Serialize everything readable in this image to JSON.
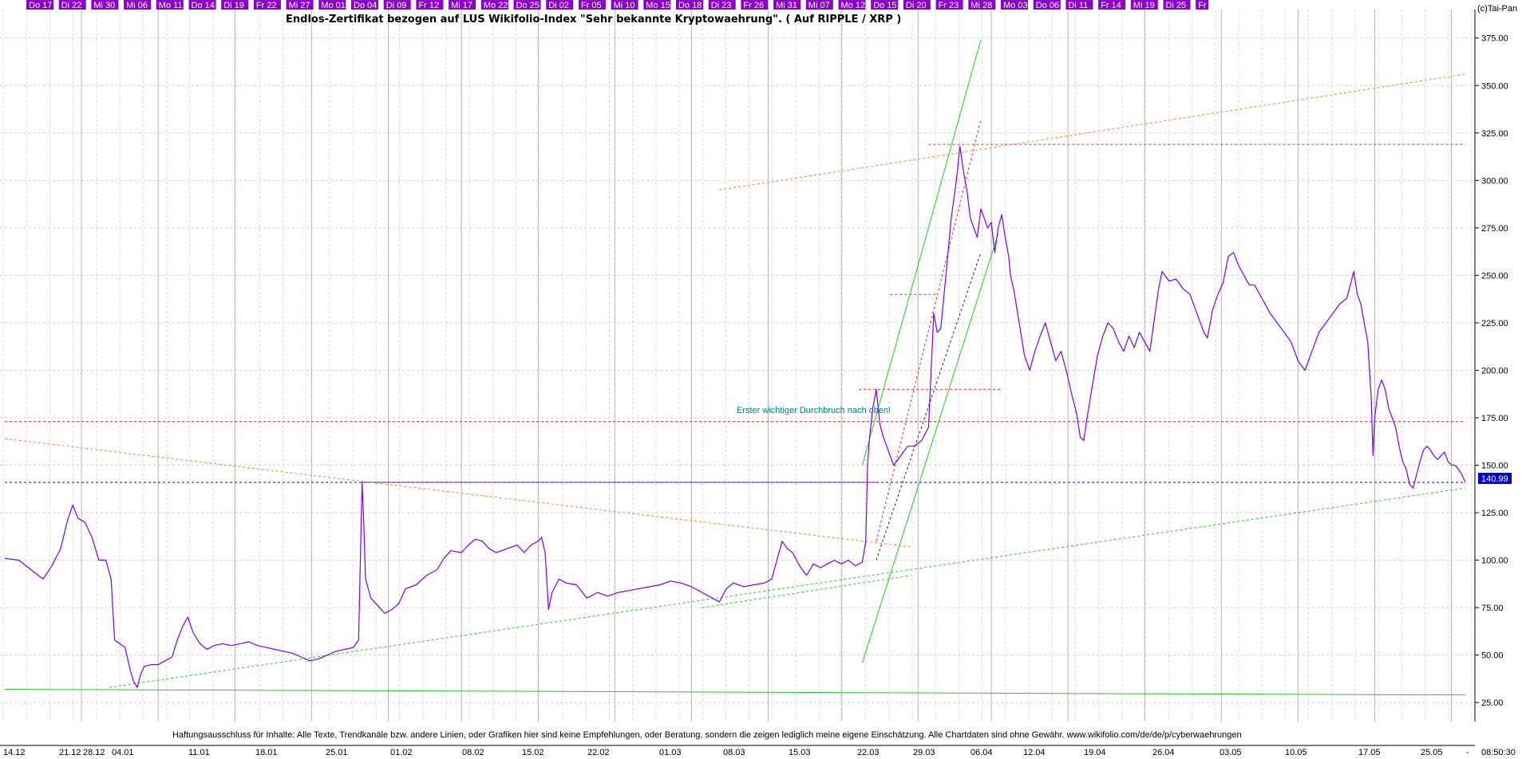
{
  "copyright": "(c)Tai-Pan",
  "footer_time": "08:50:30",
  "footer_dash": "-",
  "disclaimer": "Haftungsausschluss für Inhalte: Alle Texte, Trendkanäle bzw. andere Linien, oder Grafiken hier sind keine Empfehlungen, oder Beratung, sondern die zeigen lediglich meine eigene Einschätzung. Alle Chartdaten sind ohne Gewähr.  www.wikifolio.com/de/de/p/cyberwaehrungen",
  "top_day_tags": [
    "Do 17",
    "Di 22",
    "Mi 30",
    "Mi 06",
    "Mo 11",
    "Do 14",
    "Di 19",
    "Fr 22",
    "Mi 27",
    "Mo 01",
    "Do 04",
    "Di 09",
    "Fr 12",
    "Mi 17",
    "Mo 22",
    "Do 25",
    "Di 02",
    "Fr 05",
    "Mi 10",
    "Mo 15",
    "Do 18",
    "Di 23",
    "Fr 26",
    "Mi 31",
    "Mi 07",
    "Mo 12",
    "Do 15",
    "Di 20",
    "Fr 23",
    "Mi 28",
    "Mo 03",
    "Do 06",
    "Di 11",
    "Fr 14",
    "Mi 19",
    "Di 25",
    "Fr"
  ],
  "colors": {
    "price_line": "#7a00ee",
    "day_tag": "#8a00c8",
    "support_green": "#22cc22",
    "resistance_red": "#ee2222",
    "trend_orange": "#ff7f27",
    "current_price_blue": "#0000cc",
    "annotation_teal": "#008080"
  },
  "chart_data": {
    "type": "line",
    "title": "Endlos-Zertifikat bezogen auf LUS Wikifolio-Index \"Sehr bekannte Kryptowaehrung\". ( Auf RIPPLE / XRP )",
    "xlabel": "",
    "ylabel": "",
    "ylim": [
      15,
      390
    ],
    "y_ticks": [
      "25.00",
      "50.00",
      "75.00",
      "100.00",
      "125.00",
      "150.00",
      "175.00",
      "200.00",
      "225.00",
      "250.00",
      "275.00",
      "300.00",
      "325.00",
      "350.00",
      "375.00"
    ],
    "x_tick_labels": [
      "14.12",
      "21.12",
      "28.12",
      "04.01",
      "11.01",
      "18.01",
      "25.01",
      "01.02",
      "08.02",
      "15.02",
      "22.02",
      "01.03",
      "08.03",
      "15.03",
      "22.03",
      "29.03",
      "06.04",
      "12.04",
      "19.04",
      "26.04",
      "03.05",
      "10.05",
      "17.05",
      "25.05"
    ],
    "grid": true,
    "current_price": 140.99,
    "current_price_label": "140.99",
    "annotation": "Erster wichtiger Durchbruch nach oben!",
    "series": [
      {
        "values": [
          [
            0,
            101
          ],
          [
            8,
            100
          ],
          [
            15,
            95
          ],
          [
            22,
            90
          ],
          [
            27,
            97
          ],
          [
            32,
            106
          ],
          [
            36,
            121
          ],
          [
            39,
            129
          ],
          [
            42,
            122
          ],
          [
            46,
            120
          ],
          [
            50,
            112
          ],
          [
            54,
            100
          ],
          [
            58,
            100
          ],
          [
            61,
            90
          ],
          [
            63,
            58
          ],
          [
            66,
            56
          ],
          [
            69,
            54
          ],
          [
            72,
            42
          ],
          [
            74,
            36
          ],
          [
            76,
            33
          ],
          [
            78,
            40
          ],
          [
            80,
            44
          ],
          [
            84,
            45
          ],
          [
            88,
            45
          ],
          [
            92,
            47
          ],
          [
            96,
            49
          ],
          [
            99,
            58
          ],
          [
            102,
            65
          ],
          [
            105,
            70
          ],
          [
            108,
            62
          ],
          [
            112,
            56
          ],
          [
            116,
            53
          ],
          [
            120,
            55
          ],
          [
            125,
            56
          ],
          [
            130,
            55
          ],
          [
            135,
            56
          ],
          [
            140,
            57
          ],
          [
            145,
            55
          ],
          [
            150,
            54
          ],
          [
            155,
            53
          ],
          [
            160,
            52
          ],
          [
            165,
            51
          ],
          [
            170,
            49
          ],
          [
            175,
            47
          ],
          [
            180,
            48
          ],
          [
            185,
            50
          ],
          [
            190,
            52
          ],
          [
            195,
            53
          ],
          [
            200,
            54
          ],
          [
            203,
            58
          ],
          [
            204,
            100
          ],
          [
            205,
            141
          ],
          [
            206,
            118
          ],
          [
            207,
            90
          ],
          [
            210,
            80
          ],
          [
            214,
            76
          ],
          [
            218,
            72
          ],
          [
            222,
            74
          ],
          [
            226,
            77
          ],
          [
            230,
            85
          ],
          [
            236,
            87
          ],
          [
            242,
            92
          ],
          [
            248,
            95
          ],
          [
            252,
            101
          ],
          [
            256,
            105
          ],
          [
            262,
            104
          ],
          [
            266,
            108
          ],
          [
            270,
            111
          ],
          [
            274,
            110
          ],
          [
            278,
            106
          ],
          [
            282,
            104
          ],
          [
            288,
            106
          ],
          [
            294,
            108
          ],
          [
            298,
            104
          ],
          [
            302,
            108
          ],
          [
            306,
            110
          ],
          [
            308,
            112
          ],
          [
            310,
            104
          ],
          [
            312,
            74
          ],
          [
            314,
            83
          ],
          [
            318,
            90
          ],
          [
            322,
            88
          ],
          [
            328,
            87
          ],
          [
            334,
            80
          ],
          [
            340,
            83
          ],
          [
            346,
            81
          ],
          [
            352,
            83
          ],
          [
            358,
            84
          ],
          [
            364,
            85
          ],
          [
            370,
            86
          ],
          [
            376,
            87
          ],
          [
            382,
            89
          ],
          [
            388,
            88
          ],
          [
            394,
            86
          ],
          [
            400,
            83
          ],
          [
            406,
            80
          ],
          [
            410,
            78
          ],
          [
            414,
            85
          ],
          [
            418,
            88
          ],
          [
            424,
            86
          ],
          [
            430,
            87
          ],
          [
            436,
            88
          ],
          [
            440,
            90
          ],
          [
            443,
            100
          ],
          [
            446,
            110
          ],
          [
            449,
            106
          ],
          [
            452,
            104
          ],
          [
            456,
            97
          ],
          [
            460,
            92
          ],
          [
            464,
            98
          ],
          [
            468,
            96
          ],
          [
            472,
            98
          ],
          [
            476,
            100
          ],
          [
            480,
            98
          ],
          [
            484,
            100
          ],
          [
            488,
            97
          ],
          [
            492,
            99
          ],
          [
            494,
            110
          ],
          [
            495,
            150
          ],
          [
            496,
            163
          ],
          [
            498,
            180
          ],
          [
            500,
            190
          ],
          [
            502,
            172
          ],
          [
            504,
            165
          ],
          [
            506,
            160
          ],
          [
            510,
            150
          ],
          [
            514,
            155
          ],
          [
            518,
            160
          ],
          [
            522,
            160
          ],
          [
            526,
            163
          ],
          [
            530,
            170
          ],
          [
            532,
            210
          ],
          [
            533,
            230
          ],
          [
            535,
            220
          ],
          [
            537,
            222
          ],
          [
            540,
            250
          ],
          [
            543,
            280
          ],
          [
            546,
            300
          ],
          [
            548,
            318
          ],
          [
            550,
            305
          ],
          [
            552,
            295
          ],
          [
            554,
            280
          ],
          [
            556,
            275
          ],
          [
            558,
            270
          ],
          [
            560,
            285
          ],
          [
            562,
            280
          ],
          [
            564,
            275
          ],
          [
            566,
            278
          ],
          [
            568,
            262
          ],
          [
            570,
            275
          ],
          [
            572,
            282
          ],
          [
            574,
            270
          ],
          [
            576,
            260
          ],
          [
            577,
            250
          ],
          [
            579,
            242
          ],
          [
            582,
            225
          ],
          [
            585,
            208
          ],
          [
            588,
            200
          ],
          [
            591,
            210
          ],
          [
            594,
            218
          ],
          [
            597,
            225
          ],
          [
            600,
            215
          ],
          [
            603,
            205
          ],
          [
            606,
            210
          ],
          [
            609,
            200
          ],
          [
            612,
            188
          ],
          [
            615,
            177
          ],
          [
            617,
            165
          ],
          [
            619,
            163
          ],
          [
            621,
            175
          ],
          [
            624,
            192
          ],
          [
            627,
            208
          ],
          [
            630,
            218
          ],
          [
            633,
            225
          ],
          [
            636,
            222
          ],
          [
            639,
            215
          ],
          [
            642,
            210
          ],
          [
            645,
            218
          ],
          [
            648,
            212
          ],
          [
            651,
            220
          ],
          [
            654,
            215
          ],
          [
            657,
            210
          ],
          [
            660,
            230
          ],
          [
            662,
            243
          ],
          [
            664,
            252
          ],
          [
            668,
            247
          ],
          [
            672,
            248
          ],
          [
            676,
            243
          ],
          [
            680,
            240
          ],
          [
            684,
            230
          ],
          [
            688,
            220
          ],
          [
            690,
            217
          ],
          [
            693,
            232
          ],
          [
            696,
            240
          ],
          [
            699,
            246
          ],
          [
            702,
            260
          ],
          [
            705,
            262
          ],
          [
            708,
            255
          ],
          [
            711,
            250
          ],
          [
            714,
            245
          ],
          [
            717,
            245
          ],
          [
            720,
            240
          ],
          [
            723,
            235
          ],
          [
            726,
            230
          ],
          [
            730,
            225
          ],
          [
            734,
            220
          ],
          [
            738,
            215
          ],
          [
            742,
            205
          ],
          [
            746,
            200
          ],
          [
            750,
            210
          ],
          [
            754,
            220
          ],
          [
            758,
            225
          ],
          [
            762,
            230
          ],
          [
            766,
            235
          ],
          [
            770,
            238
          ],
          [
            772,
            245
          ],
          [
            774,
            252
          ],
          [
            776,
            240
          ],
          [
            778,
            235
          ],
          [
            780,
            225
          ],
          [
            782,
            215
          ],
          [
            784,
            185
          ],
          [
            785,
            155
          ],
          [
            786,
            175
          ],
          [
            788,
            190
          ],
          [
            790,
            195
          ],
          [
            792,
            190
          ],
          [
            794,
            180
          ],
          [
            796,
            175
          ],
          [
            798,
            170
          ],
          [
            800,
            160
          ],
          [
            802,
            152
          ],
          [
            804,
            148
          ],
          [
            806,
            140
          ],
          [
            808,
            138
          ],
          [
            810,
            145
          ],
          [
            812,
            152
          ],
          [
            814,
            158
          ],
          [
            816,
            160
          ],
          [
            818,
            158
          ],
          [
            820,
            155
          ],
          [
            822,
            153
          ],
          [
            824,
            155
          ],
          [
            826,
            157
          ],
          [
            828,
            152
          ],
          [
            830,
            150
          ],
          [
            832,
            150
          ],
          [
            834,
            148
          ],
          [
            836,
            145
          ],
          [
            838,
            141
          ]
        ]
      }
    ]
  }
}
